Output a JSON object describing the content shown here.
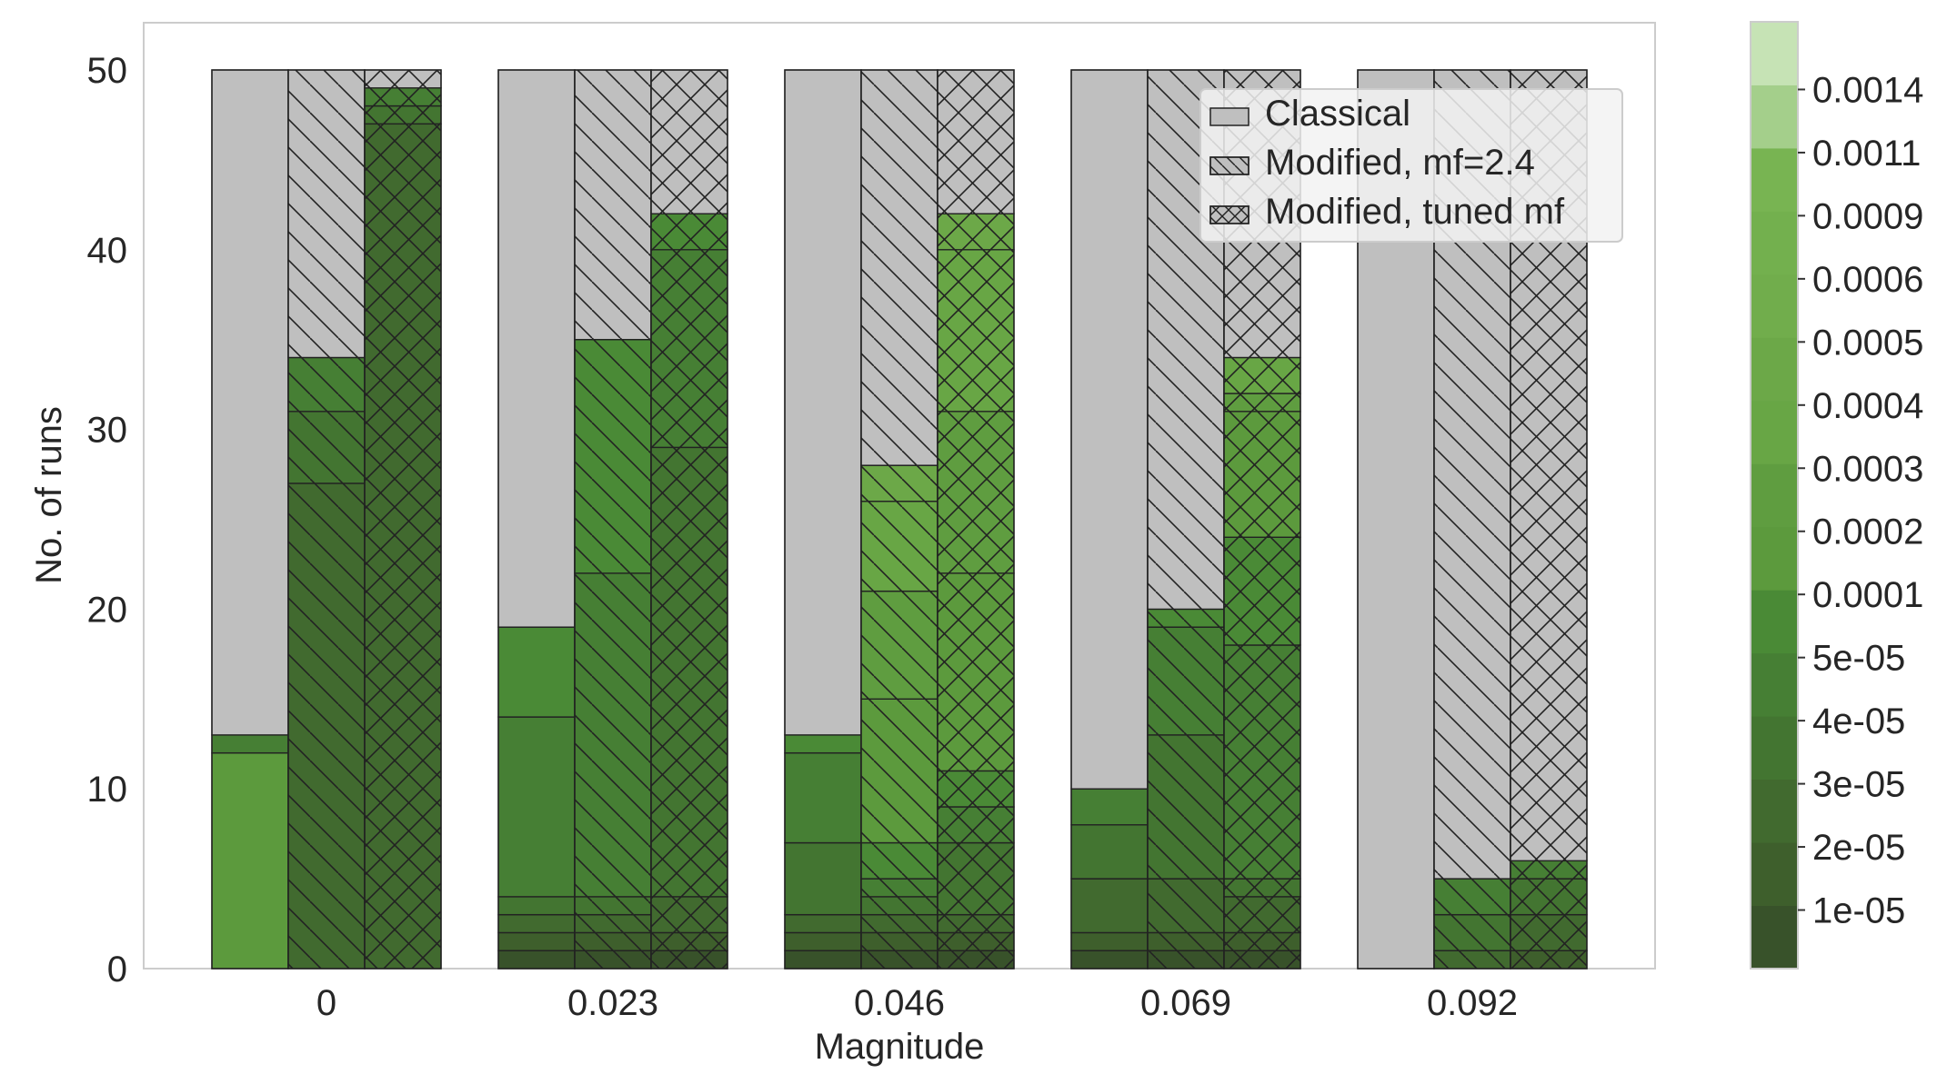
{
  "chart_data": {
    "type": "bar",
    "subtype": "stacked-grouped-bar-with-colorbar",
    "title": "",
    "xlabel": "Magnitude",
    "ylabel": "No. of runs",
    "categories": [
      "0",
      "0.023",
      "0.046",
      "0.069",
      "0.092"
    ],
    "ylim": [
      0,
      52
    ],
    "yticks": [
      0,
      10,
      20,
      30,
      40,
      50
    ],
    "grid": false,
    "legend_position": "top-right",
    "total_runs": 50,
    "series": [
      {
        "name": "Classical",
        "hatch": "none",
        "stacks": [
          [
            12,
            1
          ],
          [
            1,
            1,
            1,
            1,
            10,
            5
          ],
          [
            1,
            1,
            1,
            4,
            5,
            1
          ],
          [
            1,
            1,
            3,
            3,
            2
          ],
          []
        ]
      },
      {
        "name": "Modified, mf=2.4",
        "hatch": "diagonal",
        "stacks": [
          [
            27,
            4,
            3
          ],
          [
            1,
            1,
            1,
            1,
            18,
            13
          ],
          [
            1,
            1,
            1,
            1,
            1,
            2,
            8,
            6,
            5,
            2
          ],
          [
            1,
            1,
            3,
            8,
            6,
            1
          ],
          [
            1,
            2,
            2
          ]
        ]
      },
      {
        "name": "Modified, tuned mf",
        "hatch": "cross",
        "stacks": [
          [
            47,
            1,
            1
          ],
          [
            1,
            1,
            2,
            25,
            11,
            2
          ],
          [
            1,
            1,
            1,
            4,
            2,
            2,
            11,
            9,
            9,
            2
          ],
          [
            1,
            1,
            2,
            1,
            13,
            6,
            7,
            1,
            2
          ],
          [
            1,
            2,
            2,
            1
          ]
        ]
      }
    ],
    "colorbar": {
      "tick_labels": [
        "1e-05",
        "2e-05",
        "3e-05",
        "4e-05",
        "5e-05",
        "0.0001",
        "0.0002",
        "0.0003",
        "0.0004",
        "0.0005",
        "0.0006",
        "0.0009",
        "0.0011",
        "0.0014"
      ],
      "colors": [
        "#38522a",
        "#3e5f2c",
        "#416a2f",
        "#437531",
        "#467f34",
        "#4a8a36",
        "#5c9a3d",
        "#5f9d40",
        "#68a645",
        "#6ca848",
        "#71ad4c",
        "#73b04e",
        "#78b452",
        "#a4cf8b",
        "#c6e3b5"
      ]
    }
  },
  "colors": {
    "remainder_gray": "#bfbfbf",
    "axes_edge": "#cccccc",
    "bar_edge": "#222222",
    "legend_background": "#f2f2f2"
  }
}
